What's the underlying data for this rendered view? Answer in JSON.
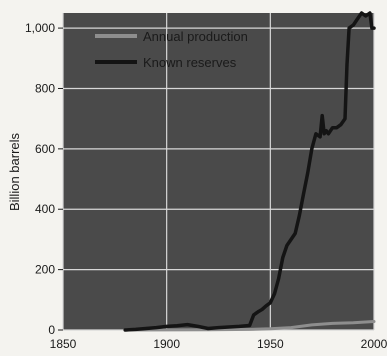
{
  "chart_data": {
    "type": "line",
    "ylabel": "Billion barrels",
    "xlabel": "",
    "xlim": [
      1850,
      2000
    ],
    "ylim": [
      0,
      1050
    ],
    "x_ticks": [
      1850,
      1900,
      1950,
      2000
    ],
    "x_tick_labels": [
      "1850",
      "1900",
      "1950",
      "2000"
    ],
    "y_ticks": [
      0,
      200,
      400,
      600,
      800,
      1000
    ],
    "y_tick_labels": [
      "0",
      "200",
      "400",
      "600",
      "800",
      "1,000"
    ],
    "grid": true,
    "legend_position": "top-left",
    "colors": {
      "background": "#4a4a4a",
      "grid": "#d8d8d8",
      "production": "#8e8e8e",
      "reserves": "#141414"
    },
    "series": [
      {
        "name": "Annual production",
        "x": [
          1880,
          1900,
          1920,
          1940,
          1950,
          1960,
          1970,
          1980,
          1990,
          2000
        ],
        "values": [
          0.1,
          0.2,
          0.7,
          2,
          4,
          8,
          17,
          22,
          24,
          28
        ]
      },
      {
        "name": "Known reserves",
        "x": [
          1880,
          1885,
          1890,
          1895,
          1900,
          1905,
          1910,
          1915,
          1920,
          1925,
          1930,
          1935,
          1940,
          1942,
          1944,
          1946,
          1948,
          1950,
          1952,
          1954,
          1956,
          1958,
          1960,
          1962,
          1964,
          1966,
          1968,
          1970,
          1972,
          1974,
          1975,
          1976,
          1977,
          1978,
          1980,
          1982,
          1984,
          1986,
          1987,
          1988,
          1990,
          1992,
          1994,
          1996,
          1998,
          1999,
          2000
        ],
        "values": [
          0,
          2,
          5,
          8,
          12,
          14,
          18,
          12,
          5,
          8,
          10,
          12,
          15,
          50,
          60,
          68,
          80,
          90,
          120,
          170,
          240,
          280,
          300,
          320,
          380,
          450,
          520,
          600,
          650,
          640,
          710,
          650,
          660,
          650,
          670,
          670,
          680,
          700,
          880,
          1000,
          1010,
          1030,
          1050,
          1040,
          1050,
          1000,
          1000
        ]
      }
    ]
  }
}
